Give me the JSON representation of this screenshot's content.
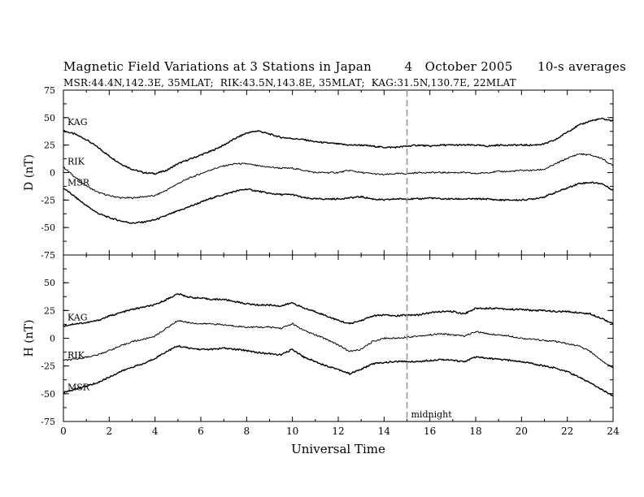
{
  "header": {
    "title": "Magnetic Field Variations at 3 Stations in Japan        4   October 2005      10-s averages",
    "subtitle": "MSR:44.4N,142.3E, 35MLAT;  RIK:43.5N,143.8E, 35MLAT;  KAG:31.5N,130.7E, 22MLAT"
  },
  "chart_data": [
    {
      "type": "line",
      "panel": "D",
      "ylabel": "D (nT)",
      "ylim": [
        -75,
        75
      ],
      "yticks": [
        "75",
        "50",
        "25",
        "0",
        "-25",
        "-50",
        "-75"
      ],
      "xlim": [
        0,
        24
      ],
      "grid": false,
      "x": [
        0,
        0.5,
        1,
        1.5,
        2,
        2.5,
        3,
        3.5,
        4,
        4.5,
        5,
        5.5,
        6,
        6.5,
        7,
        7.5,
        8,
        8.5,
        9,
        9.5,
        10,
        10.5,
        11,
        11.5,
        12,
        12.5,
        13,
        13.5,
        14,
        14.5,
        15,
        15.5,
        16,
        16.5,
        17,
        17.5,
        18,
        18.5,
        19,
        19.5,
        20,
        20.5,
        21,
        21.5,
        22,
        22.5,
        23,
        23.5,
        24
      ],
      "series": [
        {
          "name": "KAG",
          "values": [
            38,
            35,
            30,
            23,
            15,
            8,
            3,
            0,
            -1,
            2,
            8,
            12,
            16,
            20,
            25,
            31,
            36,
            38,
            35,
            32,
            31,
            30,
            28,
            27,
            26,
            25,
            25,
            24,
            23,
            23,
            24,
            25,
            24,
            25,
            25,
            25,
            25,
            24,
            25,
            25,
            25,
            25,
            26,
            30,
            37,
            43,
            47,
            49,
            47
          ]
        },
        {
          "name": "RIK",
          "values": [
            5,
            -4,
            -12,
            -18,
            -21,
            -23,
            -23,
            -22,
            -21,
            -16,
            -10,
            -5,
            -1,
            3,
            6,
            8,
            8,
            6,
            5,
            4,
            4,
            2,
            0,
            0,
            0,
            2,
            0,
            -1,
            -2,
            -1,
            -1,
            0,
            0,
            0,
            0,
            0,
            -1,
            0,
            1,
            1,
            2,
            2,
            3,
            8,
            13,
            17,
            16,
            13,
            6
          ]
        },
        {
          "name": "MSR",
          "values": [
            -14,
            -22,
            -30,
            -37,
            -41,
            -44,
            -46,
            -45,
            -43,
            -39,
            -35,
            -31,
            -27,
            -23,
            -20,
            -17,
            -15,
            -17,
            -19,
            -20,
            -20,
            -23,
            -24,
            -24,
            -24,
            -23,
            -22,
            -24,
            -25,
            -24,
            -24,
            -24,
            -23,
            -24,
            -24,
            -24,
            -24,
            -24,
            -25,
            -25,
            -25,
            -24,
            -22,
            -18,
            -14,
            -10,
            -9,
            -10,
            -16
          ]
        }
      ]
    },
    {
      "type": "line",
      "panel": "H",
      "ylabel": "H (nT)",
      "ylim": [
        -75,
        75
      ],
      "yticks": [
        "",
        "50",
        "25",
        "0",
        "-25",
        "-50",
        "-75"
      ],
      "xlim": [
        0,
        24
      ],
      "xlabel": "Universal Time",
      "xticks": [
        "0",
        "2",
        "4",
        "6",
        "8",
        "10",
        "12",
        "14",
        "16",
        "18",
        "20",
        "22",
        "24"
      ],
      "grid": false,
      "x": [
        0,
        0.5,
        1,
        1.5,
        2,
        2.5,
        3,
        3.5,
        4,
        4.5,
        5,
        5.5,
        6,
        6.5,
        7,
        7.5,
        8,
        8.5,
        9,
        9.5,
        10,
        10.5,
        11,
        11.5,
        12,
        12.5,
        13,
        13.5,
        14,
        14.5,
        15,
        15.5,
        16,
        16.5,
        17,
        17.5,
        18,
        18.5,
        19,
        19.5,
        20,
        20.5,
        21,
        21.5,
        22,
        22.5,
        23,
        23.5,
        24
      ],
      "series": [
        {
          "name": "KAG",
          "values": [
            11,
            13,
            14,
            16,
            20,
            23,
            26,
            28,
            30,
            35,
            40,
            37,
            36,
            35,
            35,
            33,
            31,
            30,
            30,
            29,
            32,
            27,
            24,
            20,
            16,
            13,
            16,
            20,
            21,
            20,
            21,
            21,
            23,
            24,
            24,
            22,
            27,
            27,
            27,
            26,
            26,
            25,
            25,
            24,
            24,
            23,
            22,
            18,
            13
          ]
        },
        {
          "name": "RIK",
          "values": [
            -20,
            -19,
            -17,
            -15,
            -11,
            -7,
            -3,
            -1,
            2,
            9,
            16,
            14,
            13,
            13,
            12,
            11,
            10,
            10,
            10,
            9,
            13,
            7,
            3,
            -1,
            -6,
            -12,
            -10,
            -3,
            0,
            0,
            1,
            2,
            3,
            4,
            3,
            2,
            6,
            4,
            3,
            2,
            0,
            -1,
            -2,
            -3,
            -5,
            -7,
            -12,
            -20,
            -27
          ]
        },
        {
          "name": "MSR",
          "values": [
            -49,
            -46,
            -43,
            -40,
            -35,
            -30,
            -26,
            -23,
            -18,
            -12,
            -7,
            -9,
            -10,
            -10,
            -9,
            -10,
            -11,
            -13,
            -14,
            -15,
            -10,
            -17,
            -21,
            -25,
            -28,
            -32,
            -28,
            -23,
            -22,
            -21,
            -21,
            -21,
            -20,
            -19,
            -20,
            -21,
            -17,
            -18,
            -19,
            -20,
            -21,
            -23,
            -25,
            -27,
            -30,
            -35,
            -40,
            -46,
            -52
          ]
        }
      ]
    }
  ],
  "annotation": {
    "marker_x": 15,
    "marker_label": "midnight"
  },
  "colors": {
    "trace": "#000000",
    "axis": "#000000",
    "marker": "#9a9a9a"
  }
}
